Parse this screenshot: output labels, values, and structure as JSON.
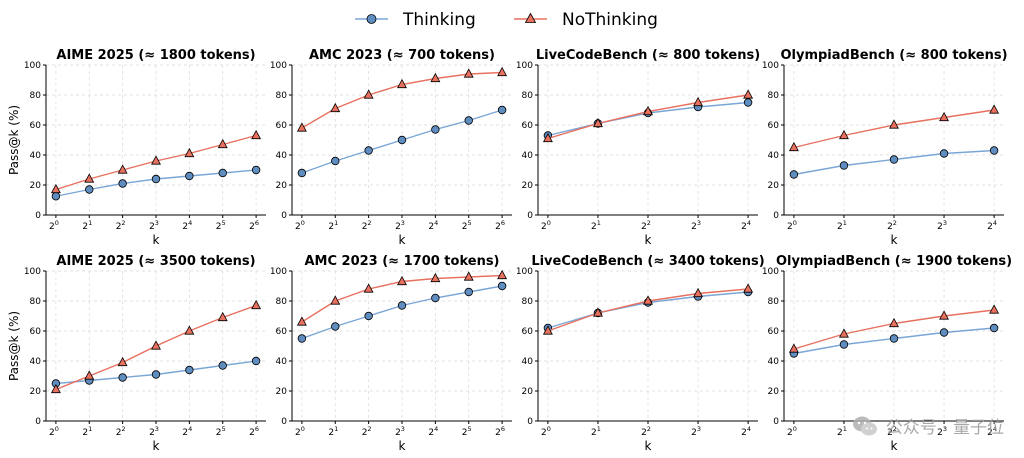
{
  "legend": {
    "thinking": "Thinking",
    "nothinking": "NoThinking"
  },
  "colors": {
    "thinking_line": "#7aa6d6",
    "thinking_marker": "#5f8dc0",
    "nothinking_line": "#e8705f",
    "nothinking_marker": "#e8705f",
    "grid": "#d9d9d9"
  },
  "watermark": {
    "text": "公众号 · 量子位",
    "icon": "wechat-logo-icon"
  },
  "chart_data": [
    {
      "type": "line",
      "title": "AIME 2025 (≈ 1800 tokens)",
      "xlabel": "k",
      "ylabel": "Pass@k (%)",
      "x_exponents": [
        0,
        1,
        2,
        3,
        4,
        5,
        6
      ],
      "x_tick_labels": [
        "2^0",
        "2^1",
        "2^2",
        "2^3",
        "2^4",
        "2^5",
        "2^6"
      ],
      "ylim": [
        0,
        100
      ],
      "yticks": [
        0,
        20,
        40,
        60,
        80,
        100
      ],
      "grid": true,
      "series": [
        {
          "name": "Thinking",
          "values": [
            12.5,
            17,
            21,
            24,
            26,
            28,
            30
          ]
        },
        {
          "name": "NoThinking",
          "values": [
            17,
            24,
            30,
            36,
            41,
            47,
            53
          ]
        }
      ]
    },
    {
      "type": "line",
      "title": "AMC 2023 (≈ 700 tokens)",
      "xlabel": "k",
      "ylabel": "",
      "x_exponents": [
        0,
        1,
        2,
        3,
        4,
        5,
        6
      ],
      "x_tick_labels": [
        "2^0",
        "2^1",
        "2^2",
        "2^3",
        "2^4",
        "2^5",
        "2^6"
      ],
      "ylim": [
        0,
        100
      ],
      "yticks": [
        0,
        20,
        40,
        60,
        80,
        100
      ],
      "grid": true,
      "series": [
        {
          "name": "Thinking",
          "values": [
            28,
            36,
            43,
            50,
            57,
            63,
            70
          ]
        },
        {
          "name": "NoThinking",
          "values": [
            58,
            71,
            80,
            87,
            91,
            94,
            95
          ]
        }
      ]
    },
    {
      "type": "line",
      "title": "LiveCodeBench (≈ 800 tokens)",
      "xlabel": "k",
      "ylabel": "",
      "x_exponents": [
        0,
        1,
        2,
        3,
        4
      ],
      "x_tick_labels": [
        "2^0",
        "2^1",
        "2^2",
        "2^3",
        "2^4"
      ],
      "ylim": [
        0,
        100
      ],
      "yticks": [
        0,
        20,
        40,
        60,
        80,
        100
      ],
      "grid": true,
      "series": [
        {
          "name": "Thinking",
          "values": [
            53,
            61,
            68,
            72,
            75
          ]
        },
        {
          "name": "NoThinking",
          "values": [
            51,
            61,
            69,
            75,
            80
          ]
        }
      ]
    },
    {
      "type": "line",
      "title": "OlympiadBench (≈ 800 tokens)",
      "xlabel": "k",
      "ylabel": "",
      "x_exponents": [
        0,
        1,
        2,
        3,
        4
      ],
      "x_tick_labels": [
        "2^0",
        "2^1",
        "2^2",
        "2^3",
        "2^4"
      ],
      "ylim": [
        0,
        100
      ],
      "yticks": [
        0,
        20,
        40,
        60,
        80,
        100
      ],
      "grid": true,
      "series": [
        {
          "name": "Thinking",
          "values": [
            27,
            33,
            37,
            41,
            43
          ]
        },
        {
          "name": "NoThinking",
          "values": [
            45,
            53,
            60,
            65,
            70
          ]
        }
      ]
    },
    {
      "type": "line",
      "title": "AIME 2025 (≈ 3500 tokens)",
      "xlabel": "k",
      "ylabel": "Pass@k (%)",
      "x_exponents": [
        0,
        1,
        2,
        3,
        4,
        5,
        6
      ],
      "x_tick_labels": [
        "2^0",
        "2^1",
        "2^2",
        "2^3",
        "2^4",
        "2^5",
        "2^6"
      ],
      "ylim": [
        0,
        100
      ],
      "yticks": [
        0,
        20,
        40,
        60,
        80,
        100
      ],
      "grid": true,
      "series": [
        {
          "name": "Thinking",
          "values": [
            25,
            27,
            29,
            31,
            34,
            37,
            40
          ]
        },
        {
          "name": "NoThinking",
          "values": [
            21,
            30,
            39,
            50,
            60,
            69,
            77
          ]
        }
      ]
    },
    {
      "type": "line",
      "title": "AMC 2023 (≈ 1700 tokens)",
      "xlabel": "k",
      "ylabel": "",
      "x_exponents": [
        0,
        1,
        2,
        3,
        4,
        5,
        6
      ],
      "x_tick_labels": [
        "2^0",
        "2^1",
        "2^2",
        "2^3",
        "2^4",
        "2^5",
        "2^6"
      ],
      "ylim": [
        0,
        100
      ],
      "yticks": [
        0,
        20,
        40,
        60,
        80,
        100
      ],
      "grid": true,
      "series": [
        {
          "name": "Thinking",
          "values": [
            55,
            63,
            70,
            77,
            82,
            86,
            90
          ]
        },
        {
          "name": "NoThinking",
          "values": [
            66,
            80,
            88,
            93,
            95,
            96,
            97
          ]
        }
      ]
    },
    {
      "type": "line",
      "title": "LiveCodeBench (≈ 3400 tokens)",
      "xlabel": "k",
      "ylabel": "",
      "x_exponents": [
        0,
        1,
        2,
        3,
        4
      ],
      "x_tick_labels": [
        "2^0",
        "2^1",
        "2^2",
        "2^3",
        "2^4"
      ],
      "ylim": [
        0,
        100
      ],
      "yticks": [
        0,
        20,
        40,
        60,
        80,
        100
      ],
      "grid": true,
      "series": [
        {
          "name": "Thinking",
          "values": [
            62,
            72,
            79,
            83,
            86
          ]
        },
        {
          "name": "NoThinking",
          "values": [
            60,
            72,
            80,
            85,
            88
          ]
        }
      ]
    },
    {
      "type": "line",
      "title": "OlympiadBench (≈ 1900 tokens)",
      "xlabel": "k",
      "ylabel": "",
      "x_exponents": [
        0,
        1,
        2,
        3,
        4
      ],
      "x_tick_labels": [
        "2^0",
        "2^1",
        "2^2",
        "2^3",
        "2^4"
      ],
      "ylim": [
        0,
        100
      ],
      "yticks": [
        0,
        20,
        40,
        60,
        80,
        100
      ],
      "grid": true,
      "series": [
        {
          "name": "Thinking",
          "values": [
            45,
            51,
            55,
            59,
            62
          ]
        },
        {
          "name": "NoThinking",
          "values": [
            48,
            58,
            65,
            70,
            74
          ]
        }
      ]
    }
  ]
}
